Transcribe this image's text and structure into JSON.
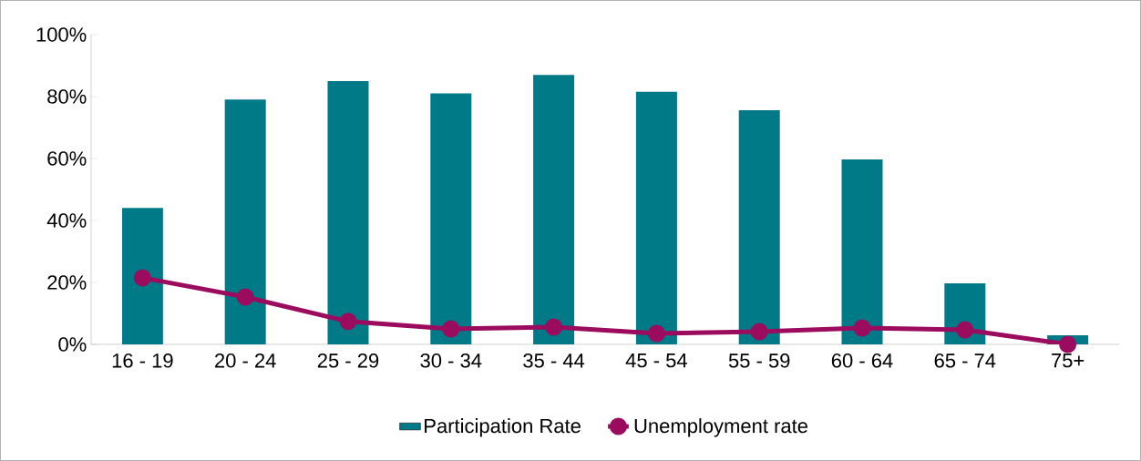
{
  "chart_data": {
    "type": "bar",
    "categories": [
      "16 - 19",
      "20 - 24",
      "25 - 29",
      "30 - 34",
      "35 - 44",
      "45 - 54",
      "55 - 59",
      "60 - 64",
      "65 - 74",
      "75+"
    ],
    "series": [
      {
        "name": "Participation Rate",
        "color": "#007a87",
        "values": [
          44,
          79,
          85,
          81,
          87,
          81.5,
          75.6,
          59.7,
          19.7,
          2.9
        ]
      },
      {
        "name": "Unemployment rate",
        "type": "line",
        "color": "#9b0b5e",
        "marker": "circle",
        "values": [
          21.5,
          15.3,
          7.4,
          5,
          5.6,
          3.5,
          4.1,
          5.3,
          4.7,
          0
        ]
      }
    ],
    "ylim": [
      0,
      100
    ],
    "yticks": [
      {
        "value": 0,
        "label": "0%"
      },
      {
        "value": 20,
        "label": "20%"
      },
      {
        "value": 40,
        "label": "40%"
      },
      {
        "value": 60,
        "label": "60%"
      },
      {
        "value": 80,
        "label": "80%"
      },
      {
        "value": 100,
        "label": "100%"
      }
    ],
    "grid": false,
    "legend": "bottom"
  }
}
